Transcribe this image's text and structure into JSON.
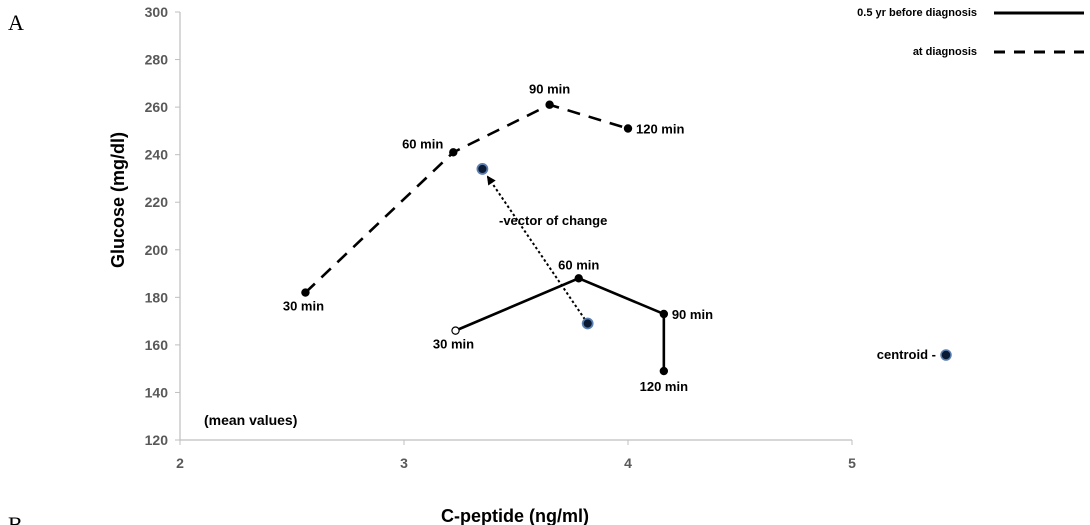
{
  "panel_letters": {
    "top": "A",
    "bottom": "B"
  },
  "chart_data": {
    "type": "line",
    "xlabel": "C-peptide (ng/ml)",
    "ylabel": "Glucose (mg/dl)",
    "xlim": [
      2,
      5
    ],
    "ylim": [
      120,
      300
    ],
    "xticks": [
      2,
      3,
      4,
      5
    ],
    "yticks": [
      120,
      140,
      160,
      180,
      200,
      220,
      240,
      260,
      280,
      300
    ],
    "grid": false,
    "legend_placement": "top-right",
    "series": [
      {
        "name": "0.5 yr before diagnosis",
        "style": "solid",
        "points": [
          {
            "x": 3.23,
            "y": 166,
            "label": "30 min",
            "marker": "open"
          },
          {
            "x": 3.78,
            "y": 188,
            "label": "60 min",
            "marker": "filled"
          },
          {
            "x": 4.16,
            "y": 173,
            "label": "90 min",
            "marker": "filled"
          },
          {
            "x": 4.16,
            "y": 149,
            "label": "120 min",
            "marker": "filled"
          }
        ],
        "centroid": {
          "x": 3.82,
          "y": 169
        }
      },
      {
        "name": "at diagnosis",
        "style": "dashed",
        "points": [
          {
            "x": 2.56,
            "y": 182,
            "label": "30 min",
            "marker": "filled"
          },
          {
            "x": 3.22,
            "y": 241,
            "label": "60 min",
            "marker": "filled"
          },
          {
            "x": 3.65,
            "y": 261,
            "label": "90 min",
            "marker": "filled"
          },
          {
            "x": 4.0,
            "y": 251,
            "label": "120 min",
            "marker": "filled"
          }
        ],
        "centroid": {
          "x": 3.35,
          "y": 234
        }
      }
    ],
    "annotations": {
      "vector_label": "-vector of change",
      "note": "(mean values)",
      "centroid_legend": "centroid -"
    },
    "colors": {
      "line": "#000000",
      "centroid_fill": "#0b1a33",
      "centroid_edge": "#5b7fb0",
      "axis": "#bfbfbf",
      "tick_text": "#595959"
    }
  }
}
